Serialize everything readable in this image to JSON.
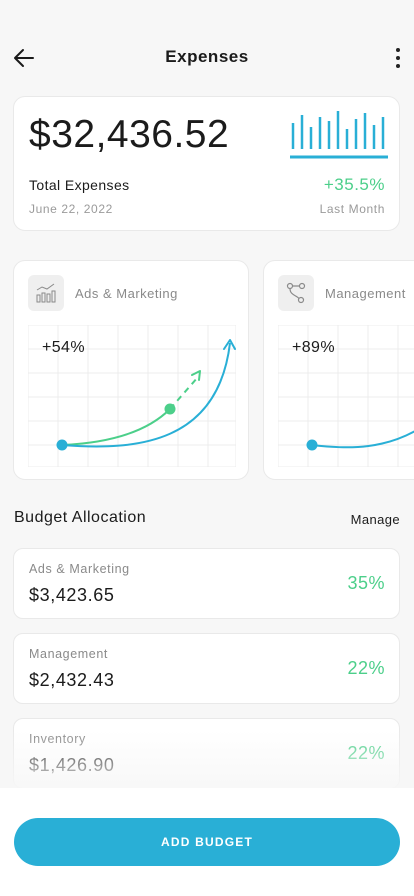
{
  "header": {
    "title": "Expenses",
    "back_icon": "arrow-left-icon",
    "menu_icon": "more-vertical-icon"
  },
  "summary": {
    "amount": "$32,436.52",
    "label": "Total Expenses",
    "date": "June 22, 2022",
    "change": "+35.5%",
    "period": "Last Month"
  },
  "categories": [
    {
      "name": "Ads & Marketing",
      "icon": "bar-chart-icon",
      "change": "+54%"
    },
    {
      "name": "Management",
      "icon": "flow-nodes-icon",
      "change": "+89%"
    }
  ],
  "budget": {
    "title": "Budget Allocation",
    "manage_label": "Manage",
    "items": [
      {
        "name": "Ads & Marketing",
        "amount": "$3,423.65",
        "percent": "35%"
      },
      {
        "name": "Management",
        "amount": "$2,432.43",
        "percent": "22%"
      },
      {
        "name": "Inventory",
        "amount": "$1,426.90",
        "percent": "22%"
      }
    ]
  },
  "action": {
    "add_budget_label": "ADD BUDGET"
  },
  "colors": {
    "accent": "#29afd6",
    "positive": "#4ccf8a",
    "background": "#f7f7f7"
  }
}
